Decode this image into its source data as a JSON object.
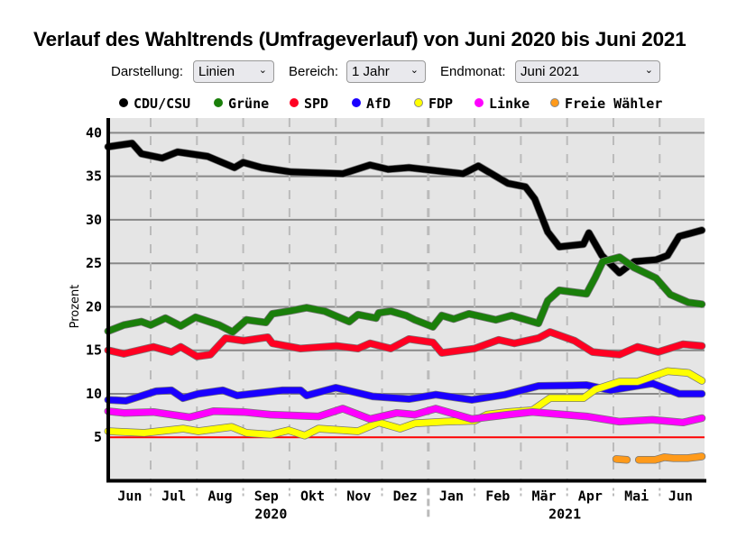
{
  "title": "Verlauf des Wahltrends (Umfrageverlauf) von Juni 2020 bis Juni 2021",
  "controls": {
    "darstellung": {
      "label": "Darstellung:",
      "value": "Linien"
    },
    "bereich": {
      "label": "Bereich:",
      "value": "1 Jahr"
    },
    "endmonat": {
      "label": "Endmonat:",
      "value": "Juni 2021"
    }
  },
  "chart_data": {
    "type": "line",
    "title": "Verlauf des Wahltrends (Umfrageverlauf) von Juni 2020 bis Juni 2021",
    "ylabel": "Prozent",
    "xlabel": "",
    "x_unit": "months since 2020-06-01",
    "xlim": [
      0.1,
      12.96
    ],
    "ylim": [
      0,
      41.7
    ],
    "yticks": [
      "5",
      "10",
      "15",
      "20",
      "25",
      "30",
      "35",
      "40"
    ],
    "ytick_values": [
      5,
      10,
      15,
      20,
      25,
      30,
      35,
      40
    ],
    "threshold": 5,
    "month_labels": [
      "Jun",
      "Jul",
      "Aug",
      "Sep",
      "Okt",
      "Nov",
      "Dez",
      "Jan",
      "Feb",
      "Mär",
      "Apr",
      "Mai",
      "Jun"
    ],
    "year_labels": [
      "2020",
      "2021"
    ],
    "grid": true,
    "legend_position": "top",
    "series": [
      {
        "name": "CDU/CSU",
        "color": "#000000",
        "x": [
          0.08,
          0.6,
          0.8,
          1.25,
          1.58,
          2.23,
          2.81,
          3.0,
          3.4,
          4.04,
          5.15,
          5.74,
          6.13,
          6.58,
          7.75,
          8.08,
          8.72,
          9.1,
          9.3,
          9.58,
          9.83,
          10.35,
          10.47,
          10.75,
          11.13,
          11.45,
          11.92,
          12.17,
          12.42,
          12.91
        ],
        "y": [
          38.4,
          38.8,
          37.6,
          37.1,
          37.8,
          37.3,
          36.0,
          36.6,
          36.0,
          35.5,
          35.3,
          36.3,
          35.8,
          36.0,
          35.3,
          36.2,
          34.2,
          33.8,
          32.4,
          28.6,
          26.9,
          27.2,
          28.5,
          25.9,
          23.9,
          25.2,
          25.4,
          25.9,
          28.1,
          28.8
        ]
      },
      {
        "name": "Grüne",
        "color": "#1a7f0a",
        "x": [
          0.08,
          0.42,
          0.8,
          1.0,
          1.32,
          1.65,
          1.97,
          2.48,
          2.77,
          3.07,
          3.49,
          3.63,
          3.98,
          4.37,
          4.76,
          5.29,
          5.48,
          5.87,
          5.93,
          6.19,
          6.52,
          6.71,
          7.1,
          7.29,
          7.55,
          7.88,
          8.46,
          8.8,
          9.38,
          9.58,
          9.83,
          10.42,
          10.61,
          10.77,
          11.13,
          11.45,
          11.92,
          12.23,
          12.62,
          12.91
        ],
        "y": [
          17.2,
          17.9,
          18.3,
          17.9,
          18.7,
          17.8,
          18.8,
          17.9,
          17.1,
          18.5,
          18.2,
          19.2,
          19.5,
          19.9,
          19.5,
          18.3,
          19.1,
          18.7,
          19.3,
          19.5,
          19.0,
          18.5,
          17.7,
          19.0,
          18.6,
          19.2,
          18.5,
          19.0,
          18.1,
          20.7,
          21.9,
          21.5,
          23.4,
          25.2,
          25.7,
          24.5,
          23.3,
          21.4,
          20.5,
          20.3
        ]
      },
      {
        "name": "SPD",
        "color": "#ff0022",
        "x": [
          0.08,
          0.42,
          1.06,
          1.45,
          1.65,
          2.0,
          2.29,
          2.62,
          3.01,
          3.53,
          3.63,
          4.24,
          5.02,
          5.48,
          5.74,
          6.19,
          6.58,
          7.1,
          7.29,
          8.0,
          8.52,
          8.86,
          9.38,
          9.63,
          10.16,
          10.55,
          11.13,
          11.52,
          11.97,
          12.5,
          12.91
        ],
        "y": [
          15.0,
          14.6,
          15.4,
          14.8,
          15.4,
          14.3,
          14.5,
          16.4,
          16.1,
          16.5,
          15.8,
          15.2,
          15.5,
          15.2,
          15.8,
          15.2,
          16.3,
          15.9,
          14.7,
          15.2,
          16.2,
          15.8,
          16.4,
          17.1,
          16.1,
          14.8,
          14.5,
          15.4,
          14.8,
          15.7,
          15.5
        ]
      },
      {
        "name": "AfD",
        "color": "#1a00ff",
        "x": [
          0.08,
          0.47,
          1.12,
          1.45,
          1.7,
          2.03,
          2.56,
          2.87,
          3.85,
          4.24,
          4.37,
          5.0,
          5.8,
          6.58,
          7.16,
          7.94,
          8.66,
          9.38,
          10.42,
          10.94,
          11.84,
          12.42,
          12.91
        ],
        "y": [
          9.3,
          9.2,
          10.3,
          10.4,
          9.5,
          10.0,
          10.4,
          9.8,
          10.4,
          10.4,
          9.8,
          10.7,
          9.7,
          9.4,
          9.9,
          9.3,
          9.9,
          10.9,
          11.0,
          10.4,
          11.2,
          10.0,
          10.0
        ]
      },
      {
        "name": "FDP",
        "color": "#ffff00",
        "x": [
          0.08,
          0.86,
          1.7,
          2.03,
          2.75,
          3.07,
          3.59,
          3.98,
          4.33,
          4.63,
          5.48,
          5.93,
          6.39,
          6.71,
          7.36,
          8.0,
          8.27,
          8.72,
          9.25,
          9.63,
          10.35,
          10.61,
          11.13,
          11.52,
          12.17,
          12.62,
          12.91
        ],
        "y": [
          5.7,
          5.5,
          6.0,
          5.7,
          6.2,
          5.5,
          5.3,
          5.8,
          5.2,
          6.0,
          5.7,
          6.7,
          6.0,
          6.6,
          6.8,
          6.9,
          7.6,
          7.9,
          8.1,
          9.5,
          9.5,
          10.5,
          11.4,
          11.4,
          12.6,
          12.4,
          11.5
        ]
      },
      {
        "name": "Linke",
        "color": "#ff00ff",
        "x": [
          0.08,
          0.42,
          1.06,
          1.84,
          2.36,
          3.01,
          3.59,
          4.63,
          5.15,
          5.74,
          6.32,
          6.71,
          7.16,
          7.94,
          8.72,
          9.25,
          10.42,
          11.13,
          11.84,
          12.5,
          12.91
        ],
        "y": [
          8.0,
          7.8,
          7.9,
          7.3,
          8.0,
          7.9,
          7.6,
          7.4,
          8.3,
          7.1,
          7.8,
          7.6,
          8.3,
          7.1,
          7.6,
          7.9,
          7.4,
          6.8,
          7.0,
          6.7,
          7.2
        ]
      },
      {
        "name": "Freie Wähler",
        "color": "#ff9a1a",
        "x": [
          11.06,
          11.29,
          null,
          11.55,
          11.9,
          12.1,
          12.3,
          12.6,
          12.91
        ],
        "y": [
          2.5,
          2.4,
          null,
          2.4,
          2.4,
          2.7,
          2.6,
          2.6,
          2.8
        ]
      }
    ]
  }
}
